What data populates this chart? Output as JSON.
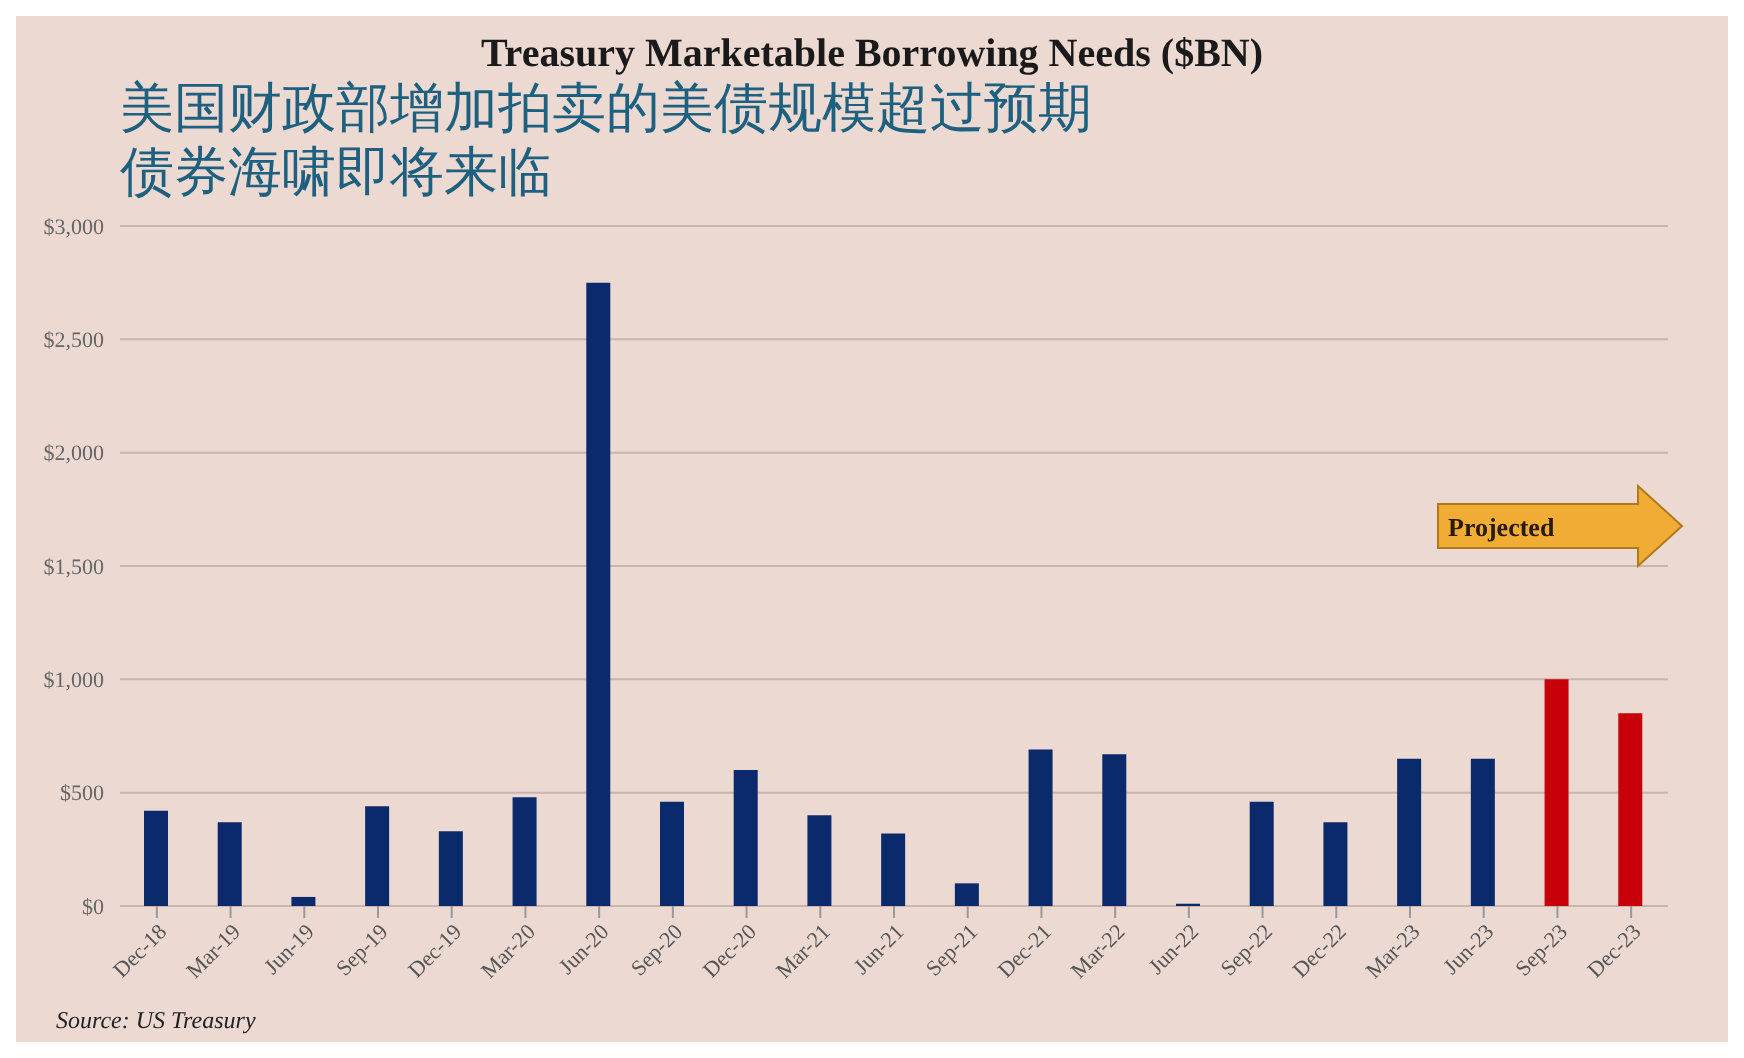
{
  "chart_data": {
    "type": "bar",
    "title": "Treasury Marketable Borrowing Needs ($BN)",
    "subtitle": "美国财政部增加拍卖的美债规模超过预期债券海啸即将来临",
    "categories": [
      "Dec-18",
      "Mar-19",
      "Jun-19",
      "Sep-19",
      "Dec-19",
      "Mar-20",
      "Jun-20",
      "Sep-20",
      "Dec-20",
      "Mar-21",
      "Jun-21",
      "Sep-21",
      "Dec-21",
      "Mar-22",
      "Jun-22",
      "Sep-22",
      "Dec-22",
      "Mar-23",
      "Jun-23",
      "Sep-23",
      "Dec-23"
    ],
    "values": [
      420,
      370,
      40,
      440,
      330,
      480,
      2750,
      460,
      600,
      400,
      320,
      100,
      690,
      670,
      10,
      460,
      370,
      650,
      650,
      1000,
      850
    ],
    "colors": [
      "#0b2a6b",
      "#0b2a6b",
      "#0b2a6b",
      "#0b2a6b",
      "#0b2a6b",
      "#0b2a6b",
      "#0b2a6b",
      "#0b2a6b",
      "#0b2a6b",
      "#0b2a6b",
      "#0b2a6b",
      "#0b2a6b",
      "#0b2a6b",
      "#0b2a6b",
      "#0b2a6b",
      "#0b2a6b",
      "#0b2a6b",
      "#0b2a6b",
      "#0b2a6b",
      "#c8000a",
      "#c8000a"
    ],
    "ylim": [
      0,
      3000
    ],
    "yticks": [
      {
        "value": 0,
        "label": "$0"
      },
      {
        "value": 500,
        "label": "$500"
      },
      {
        "value": 1000,
        "label": "$1,000"
      },
      {
        "value": 1500,
        "label": "$1,500"
      },
      {
        "value": 2000,
        "label": "$2,000"
      },
      {
        "value": 2500,
        "label": "$2,500"
      },
      {
        "value": 3000,
        "label": "$3,000"
      }
    ],
    "grid": "y",
    "legend": false,
    "annotations": [
      "Projected",
      "Source: US Treasury"
    ]
  }
}
